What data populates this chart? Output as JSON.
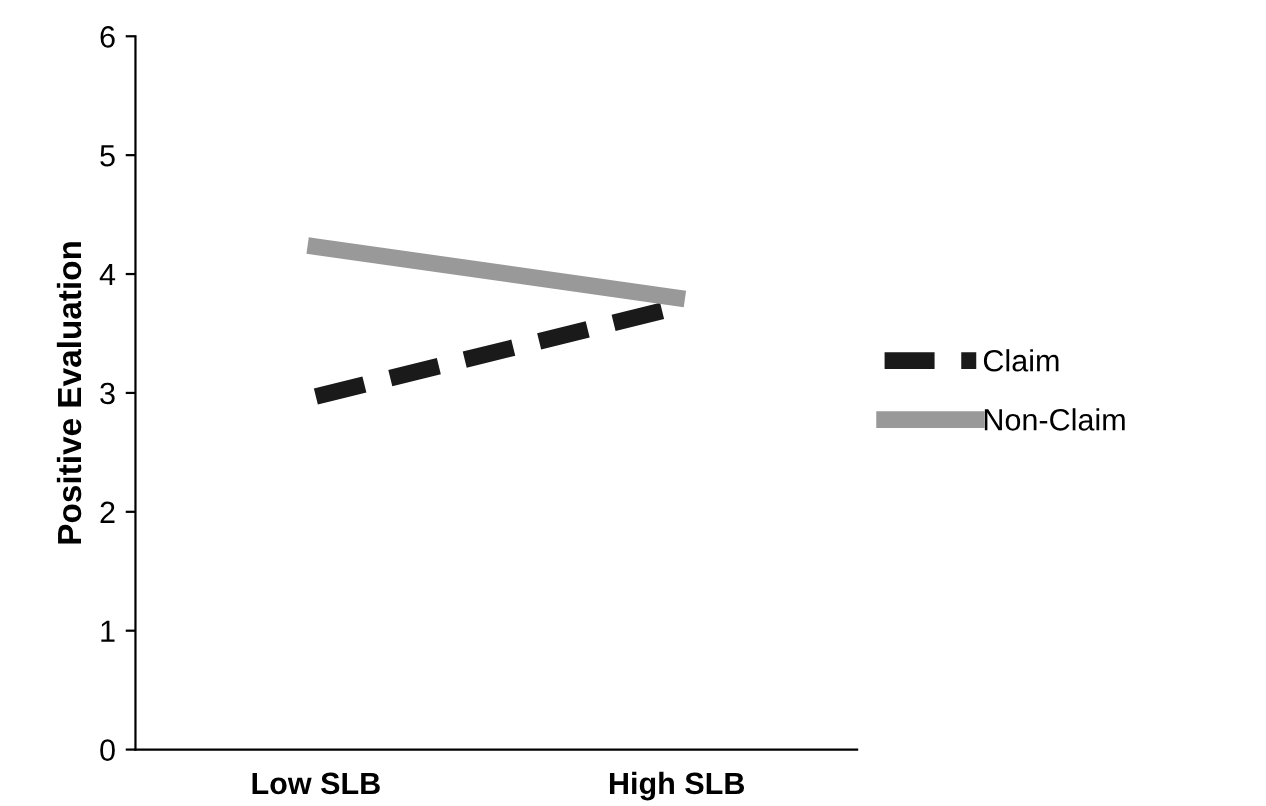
{
  "chart_data": {
    "type": "line",
    "ylabel": "Positive Evaluation",
    "categories": [
      "Low SLB",
      "High SLB"
    ],
    "series": [
      {
        "name": "Claim",
        "color": "#1a1a1a",
        "values": [
          2.97,
          3.72
        ],
        "line_style": "dashed"
      },
      {
        "name": "Non-Claim",
        "color": "#999999",
        "values": [
          4.23,
          3.8
        ],
        "line_style": "solid"
      }
    ],
    "ylim": [
      0,
      6
    ],
    "yticks": [
      0,
      1,
      2,
      3,
      4,
      5,
      6
    ],
    "grid": false,
    "legend": "right",
    "marker": "none"
  }
}
